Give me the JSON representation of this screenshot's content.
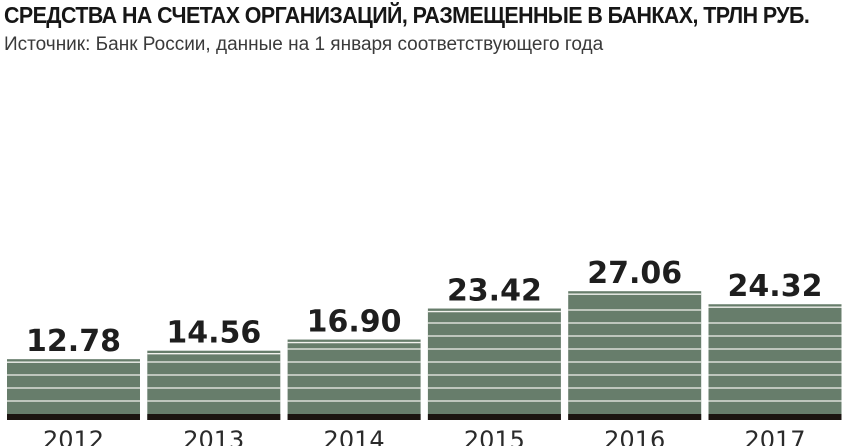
{
  "title": "СРЕДСТВА НА СЧЕТАХ ОРГАНИЗАЦИЙ, РАЗМЕЩЕННЫЕ В БАНКАХ, ТРЛН РУБ.",
  "subtitle": "Источник: Банк России, данные на 1 января соответствующего года",
  "colors": {
    "bar": "#677d6b",
    "stripe": "#f2f2ee",
    "base": "#1b1410",
    "label": "#1e1e1e"
  },
  "chart_data": {
    "type": "bar",
    "title": "СРЕДСТВА НА СЧЕТАХ ОРГАНИЗАЦИЙ, РАЗМЕЩЕННЫЕ В БАНКАХ, ТРЛН РУБ.",
    "subtitle": "Источник: Банк России, данные на 1 января соответствующего года",
    "categories": [
      "2012",
      "2013",
      "2014",
      "2015",
      "2016",
      "2017"
    ],
    "values": [
      12.78,
      14.56,
      16.9,
      23.42,
      27.06,
      24.32
    ],
    "value_labels": [
      "12.78",
      "14.56",
      "16.90",
      "23.42",
      "27.06",
      "24.32"
    ],
    "xlabel": "",
    "ylabel": "",
    "grid": false,
    "legend": "none"
  }
}
